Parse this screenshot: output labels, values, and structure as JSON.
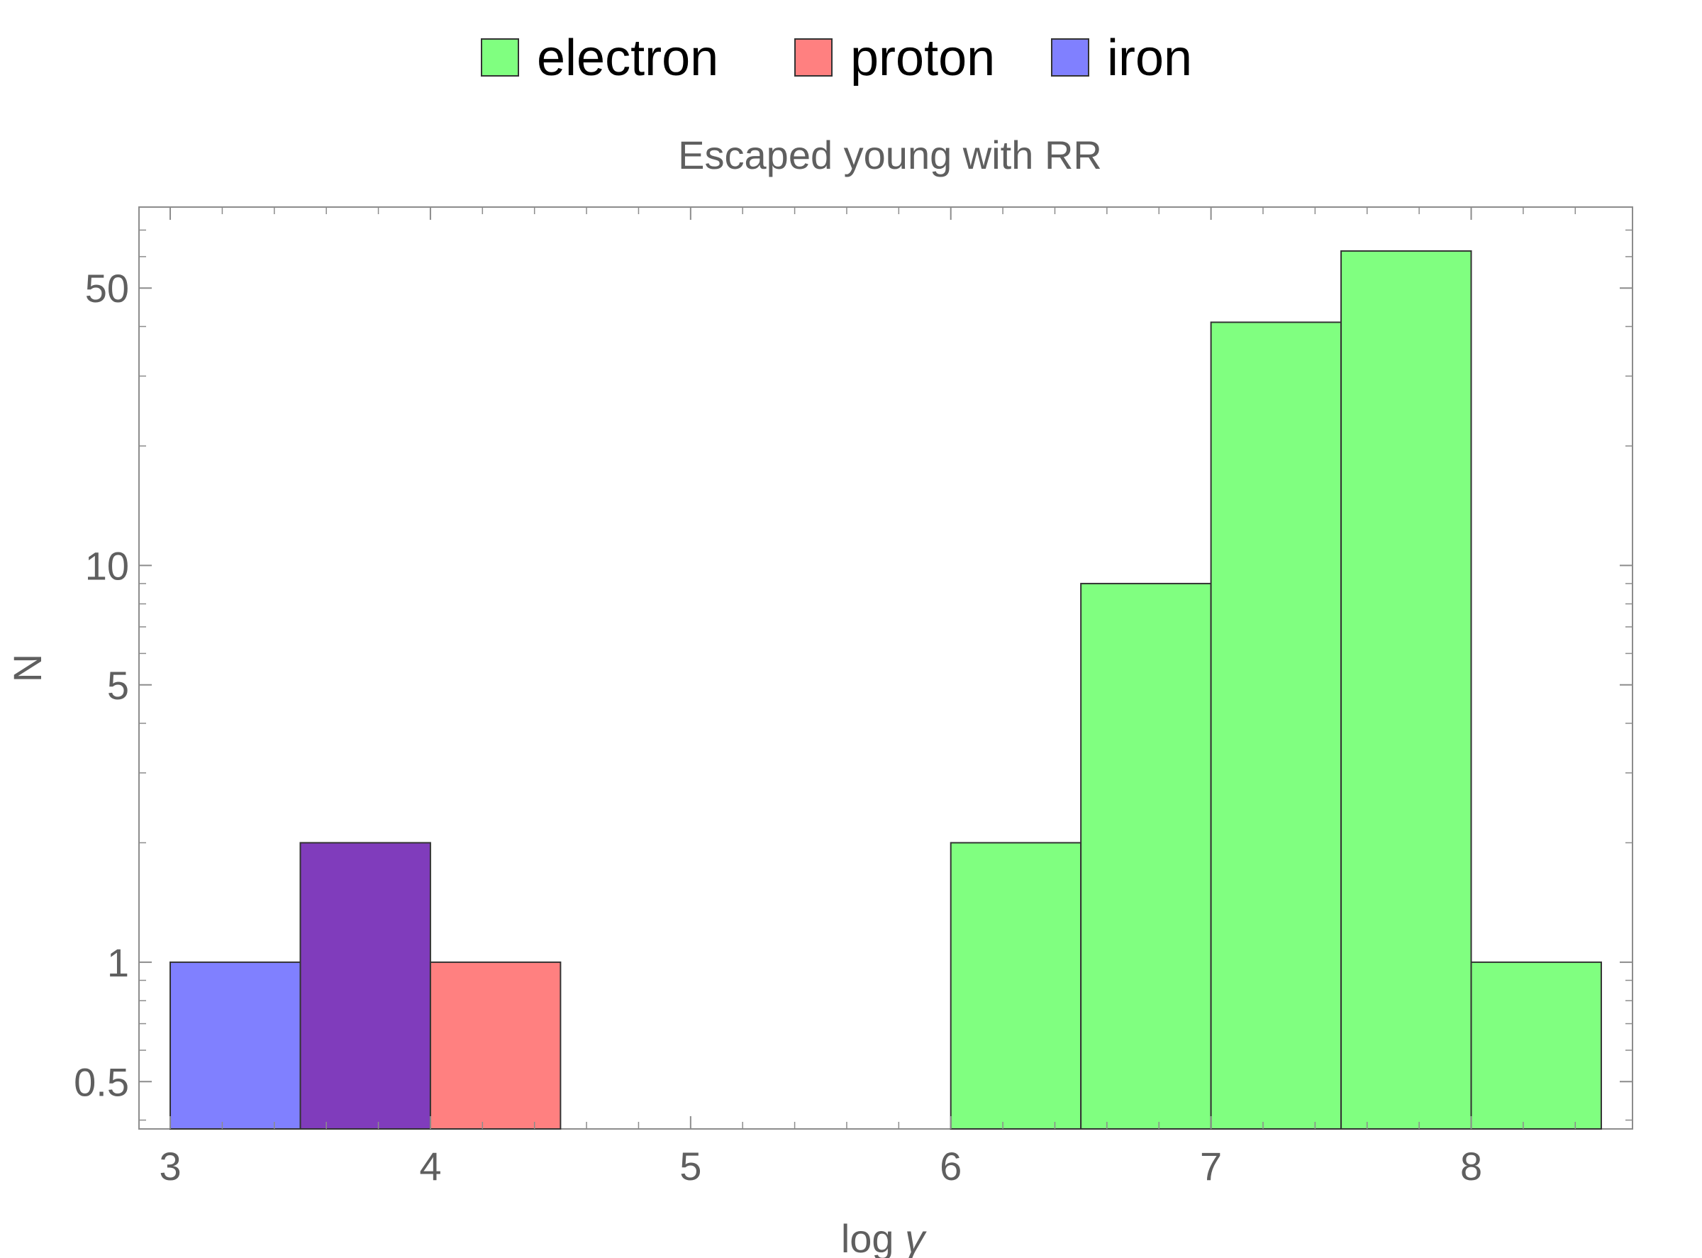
{
  "chart_data": {
    "type": "histogram",
    "title": "Escaped young with RR",
    "xlabel": "log γ",
    "xlabel_parts": {
      "text": "log ",
      "symbol": "γ"
    },
    "ylabel": "N",
    "yscale": "log",
    "xlim": [
      2.88,
      8.62
    ],
    "ylim": [
      0.38,
      80
    ],
    "x_ticks": [
      3,
      4,
      5,
      6,
      7,
      8
    ],
    "x_tick_labels": [
      "3",
      "4",
      "5",
      "6",
      "7",
      "8"
    ],
    "y_ticks": [
      0.5,
      1,
      5,
      10,
      50
    ],
    "y_tick_labels": [
      "0.5",
      "1",
      "5",
      "10",
      "50"
    ],
    "grid": false,
    "legend_position": "top-center",
    "series": [
      {
        "name": "electron",
        "color": "#80ff80",
        "bins": [
          {
            "x0": 6.0,
            "x1": 6.5,
            "count": 2
          },
          {
            "x0": 6.5,
            "x1": 7.0,
            "count": 9
          },
          {
            "x0": 7.0,
            "x1": 7.5,
            "count": 41
          },
          {
            "x0": 7.5,
            "x1": 8.0,
            "count": 62
          },
          {
            "x0": 8.0,
            "x1": 8.5,
            "count": 1
          }
        ]
      },
      {
        "name": "proton",
        "color": "#ff8080",
        "bins": [
          {
            "x0": 3.5,
            "x1": 4.0,
            "count": 2
          },
          {
            "x0": 4.0,
            "x1": 4.5,
            "count": 1
          }
        ]
      },
      {
        "name": "iron",
        "color": "#8080ff",
        "bins": [
          {
            "x0": 3.0,
            "x1": 3.5,
            "count": 1
          },
          {
            "x0": 3.5,
            "x1": 4.0,
            "count": 2
          }
        ]
      }
    ],
    "overlap_color": "#803cbc"
  }
}
